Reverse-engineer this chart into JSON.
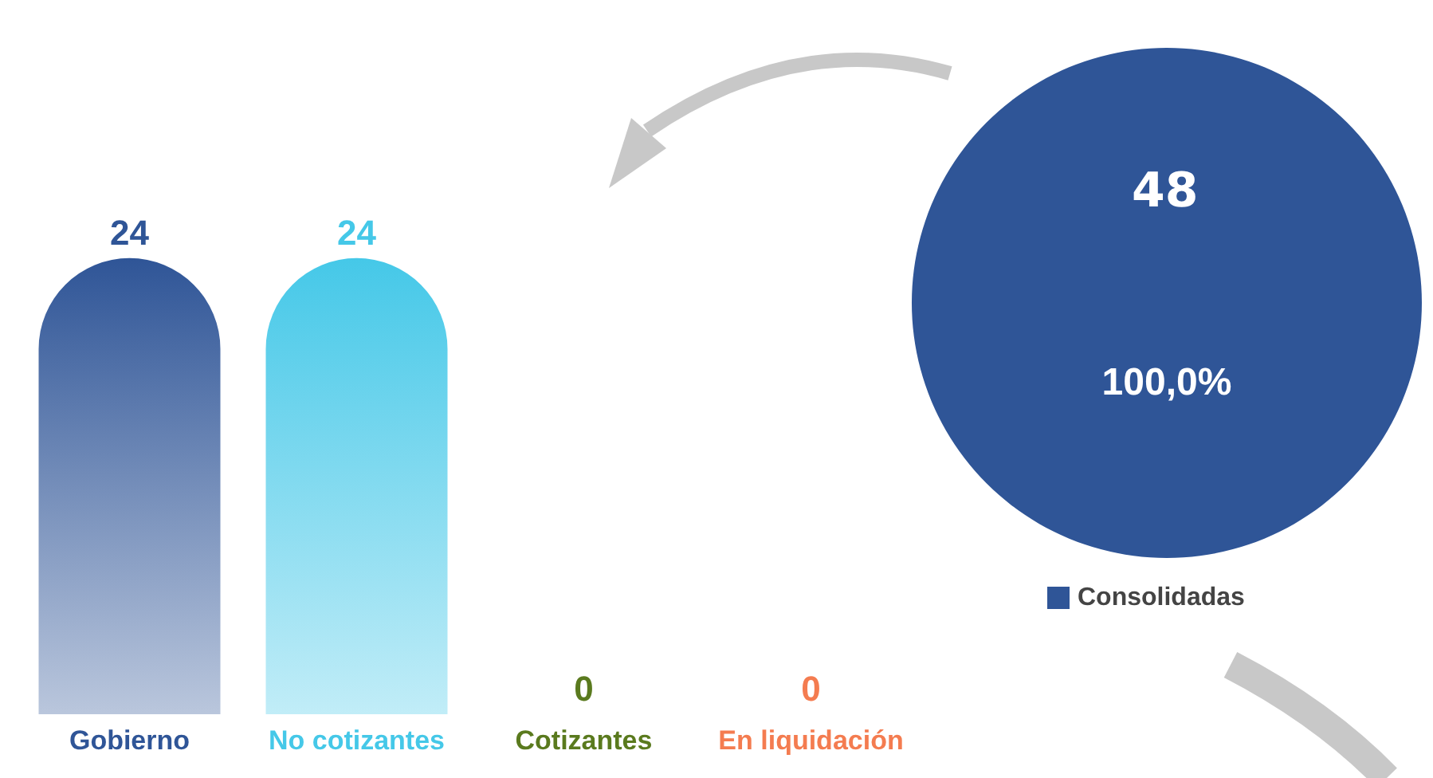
{
  "chart_data": [
    {
      "type": "bar",
      "categories": [
        "Gobierno",
        "No cotizantes",
        "Cotizantes",
        "En liquidación"
      ],
      "values": [
        24,
        24,
        0,
        0
      ],
      "colors": [
        "#2f5597",
        "#45c8e8",
        "#5a7a1e",
        "#f47c50"
      ],
      "data_labels": true
    },
    {
      "type": "pie",
      "categories": [
        "Consolidadas"
      ],
      "values": [
        100
      ],
      "value_labels": [
        "100,0%"
      ],
      "annotations": [
        "48"
      ],
      "colors": [
        "#2f5597"
      ],
      "legend": "bottom"
    }
  ]
}
